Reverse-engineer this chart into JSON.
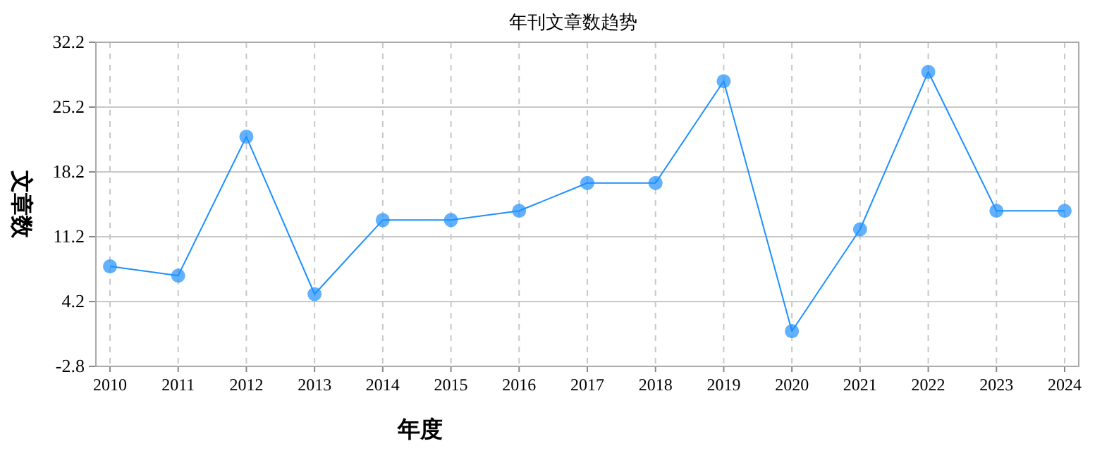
{
  "chart_data": {
    "type": "line",
    "title": "年刊文章数趋势",
    "xlabel": "年度",
    "ylabel": "文章数",
    "categories": [
      "2010",
      "2011",
      "2012",
      "2013",
      "2014",
      "2015",
      "2016",
      "2017",
      "2018",
      "2019",
      "2020",
      "2021",
      "2022",
      "2023",
      "2024"
    ],
    "series": [
      {
        "color": "#1e90ff",
        "values": [
          8,
          7,
          22,
          5,
          13,
          13,
          14,
          17,
          17,
          28,
          1,
          12,
          29,
          14,
          14
        ]
      }
    ],
    "ylim": [
      -2.8,
      32.2
    ],
    "yticks": [
      -2.8,
      4.2,
      11.2,
      18.2,
      25.2,
      32.2
    ],
    "grid": true,
    "marker": "circle",
    "line_style": "solid"
  }
}
